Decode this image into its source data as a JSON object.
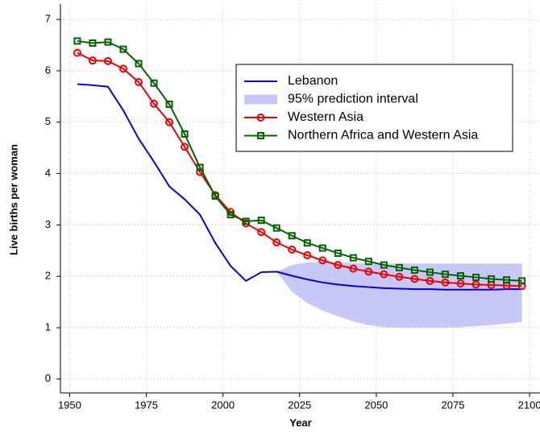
{
  "chart_data": {
    "type": "line",
    "x_label": "Year",
    "y_label": "Live births per woman",
    "x": [
      1952.5,
      1957.5,
      1962.5,
      1967.5,
      1972.5,
      1977.5,
      1982.5,
      1987.5,
      1992.5,
      1997.5,
      2002.5,
      2007.5,
      2012.5,
      2017.5,
      2022.5,
      2027.5,
      2032.5,
      2037.5,
      2042.5,
      2047.5,
      2052.5,
      2057.5,
      2062.5,
      2067.5,
      2072.5,
      2077.5,
      2082.5,
      2087.5,
      2092.5,
      2097.5
    ],
    "series": [
      {
        "name": "Lebanon",
        "color": "#0000dd",
        "marker": "none",
        "values": [
          5.74,
          5.72,
          5.69,
          5.23,
          4.68,
          4.23,
          3.75,
          3.5,
          3.2,
          2.65,
          2.2,
          1.91,
          2.08,
          2.09,
          2.01,
          1.94,
          1.88,
          1.84,
          1.81,
          1.79,
          1.77,
          1.76,
          1.75,
          1.75,
          1.74,
          1.74,
          1.74,
          1.74,
          1.75,
          1.75
        ]
      },
      {
        "name": "Western Asia",
        "color": "#ee0000",
        "marker": "circle",
        "values": [
          6.35,
          6.2,
          6.19,
          6.04,
          5.78,
          5.36,
          5.0,
          4.52,
          4.03,
          3.58,
          3.25,
          3.03,
          2.86,
          2.66,
          2.52,
          2.41,
          2.31,
          2.22,
          2.15,
          2.09,
          2.04,
          1.99,
          1.95,
          1.91,
          1.88,
          1.86,
          1.84,
          1.83,
          1.82,
          1.81
        ]
      },
      {
        "name": "Northern Africa and Western Asia",
        "color": "#006400",
        "marker": "square",
        "values": [
          6.58,
          6.54,
          6.56,
          6.42,
          6.14,
          5.76,
          5.35,
          4.77,
          4.12,
          3.56,
          3.2,
          3.07,
          3.09,
          2.94,
          2.79,
          2.65,
          2.55,
          2.45,
          2.36,
          2.29,
          2.22,
          2.17,
          2.12,
          2.08,
          2.04,
          2.01,
          1.98,
          1.95,
          1.93,
          1.91
        ]
      }
    ],
    "interval": {
      "name": "95% prediction interval",
      "color": "#c8c8f8",
      "x": [
        2017.5,
        2022.5,
        2027.5,
        2032.5,
        2037.5,
        2042.5,
        2047.5,
        2052.5,
        2057.5,
        2062.5,
        2067.5,
        2072.5,
        2077.5,
        2082.5,
        2087.5,
        2092.5,
        2097.5
      ],
      "lower": [
        2.09,
        1.7,
        1.48,
        1.33,
        1.22,
        1.12,
        1.05,
        1.01,
        1.0,
        1.0,
        1.0,
        1.0,
        1.01,
        1.03,
        1.05,
        1.08,
        1.11
      ],
      "upper": [
        2.09,
        2.22,
        2.27,
        2.28,
        2.27,
        2.26,
        2.25,
        2.25,
        2.25,
        2.25,
        2.25,
        2.25,
        2.25,
        2.25,
        2.25,
        2.25,
        2.25
      ]
    },
    "xlim": [
      1947,
      2103
    ],
    "ylim": [
      -0.27,
      7.3
    ],
    "xticks": [
      1950,
      1975,
      2000,
      2025,
      2050,
      2075,
      2100
    ],
    "yticks": [
      0,
      1,
      2,
      3,
      4,
      5,
      6,
      7
    ],
    "grid": true
  }
}
